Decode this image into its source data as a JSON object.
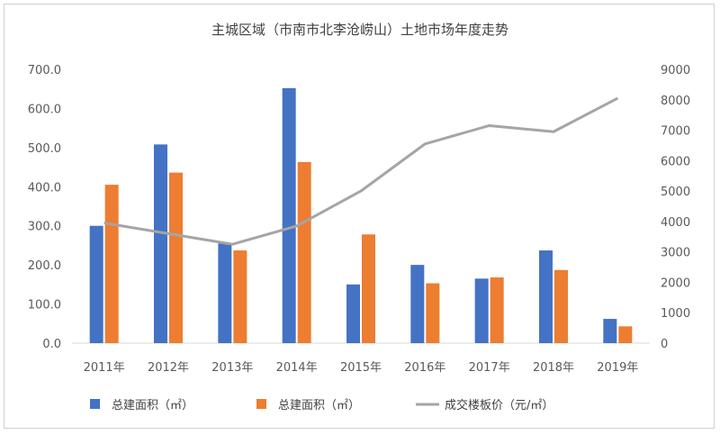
{
  "chart_data": {
    "type": "bar",
    "title": "主城区域（市南市北李沧崂山）土地市场年度走势",
    "categories": [
      "2011年",
      "2012年",
      "2013年",
      "2014年",
      "2015年",
      "2016年",
      "2017年",
      "2018年",
      "2019年"
    ],
    "y_ticks": [
      "0.0",
      "100.0",
      "200.0",
      "300.0",
      "400.0",
      "500.0",
      "600.0",
      "700.0"
    ],
    "y2_ticks": [
      "0",
      "1000",
      "2000",
      "3000",
      "4000",
      "5000",
      "6000",
      "7000",
      "8000",
      "9000"
    ],
    "ylim": [
      0,
      700
    ],
    "y2lim": [
      0,
      9000
    ],
    "grid": false,
    "legend_position": "bottom",
    "series": [
      {
        "name": "总建面积（㎡）",
        "type": "bar",
        "axis": "left",
        "color": "#4472C4",
        "values": [
          300,
          508,
          255,
          652,
          150,
          200,
          165,
          237,
          62
        ]
      },
      {
        "name": "总建面积（㎡）",
        "type": "bar",
        "axis": "left",
        "color": "#ED7D31",
        "values": [
          405,
          436,
          237,
          463,
          278,
          153,
          168,
          187,
          43
        ]
      },
      {
        "name": "成交楼板价（元/㎡）",
        "type": "line",
        "axis": "right",
        "color": "#A5A5A5",
        "values": [
          3950,
          3600,
          3250,
          3850,
          5000,
          6550,
          7150,
          6950,
          8050
        ]
      }
    ]
  }
}
